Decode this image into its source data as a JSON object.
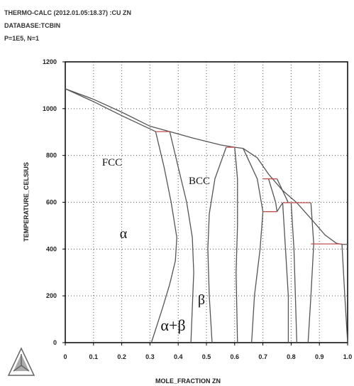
{
  "chart_data": {
    "type": "line",
    "header_lines": [
      "THERMO-CALC (2012.01.05:18.37) :CU ZN",
      "DATABASE:TCBIN",
      "P=1E5, N=1"
    ],
    "xlabel": "MOLE_FRACTION ZN",
    "ylabel": "TEMPERATURE_CELSIUS",
    "xlim": [
      0,
      1
    ],
    "ylim": [
      0,
      1200
    ],
    "xticks": [
      0,
      0.1,
      0.2,
      0.3,
      0.4,
      0.5,
      0.6,
      0.7,
      0.8,
      0.9,
      {
        "value": 1,
        "label": "1.0"
      }
    ],
    "yticks": [
      0,
      200,
      400,
      600,
      800,
      1000,
      1200
    ],
    "grid": true,
    "series": [
      {
        "color": "#555555",
        "x": [
          0,
          0.1,
          0.2,
          0.3,
          0.37,
          0.45,
          0.55,
          0.6,
          0.63,
          0.68,
          0.72,
          0.77,
          0.82,
          0.87,
          0.92,
          0.96,
          0.98,
          1.0
        ],
        "y": [
          1085,
          1040,
          985,
          925,
          902,
          875,
          845,
          835,
          830,
          790,
          720,
          650,
          598,
          530,
          460,
          425,
          420,
          420
        ]
      },
      {
        "color": "#555555",
        "x": [
          0,
          0.1,
          0.2,
          0.32
        ],
        "y": [
          1085,
          1030,
          970,
          902
        ]
      },
      {
        "color": "#555555",
        "x": [
          0.32,
          0.35,
          0.375,
          0.395,
          0.39,
          0.37,
          0.345,
          0.305
        ],
        "y": [
          902,
          750,
          600,
          450,
          350,
          250,
          150,
          0
        ]
      },
      {
        "color": "#555555",
        "x": [
          0.37,
          0.4,
          0.43,
          0.45,
          0.455,
          0.45,
          0.445
        ],
        "y": [
          902,
          750,
          600,
          450,
          300,
          150,
          0
        ]
      },
      {
        "color": "#555555",
        "x": [
          0.57,
          0.53,
          0.51,
          0.505,
          0.51,
          0.52
        ],
        "y": [
          835,
          700,
          550,
          400,
          200,
          0
        ]
      },
      {
        "color": "#555555",
        "x": [
          0.6,
          0.61,
          0.61,
          0.605,
          0.61
        ],
        "y": [
          835,
          700,
          500,
          300,
          0
        ]
      },
      {
        "color": "#555555",
        "x": [
          0.63,
          0.68,
          0.7,
          0.69,
          0.67,
          0.66
        ],
        "y": [
          830,
          700,
          560,
          400,
          200,
          0
        ]
      },
      {
        "color": "#555555",
        "x": [
          0.72,
          0.745,
          0.75
        ],
        "y": [
          700,
          600,
          560
        ]
      },
      {
        "color": "#555555",
        "x": [
          0.75,
          0.79
        ],
        "y": [
          700,
          598
        ]
      },
      {
        "color": "#555555",
        "x": [
          0.75,
          0.77
        ],
        "y": [
          560,
          598
        ]
      },
      {
        "color": "#555555",
        "x": [
          0.77,
          0.78,
          0.79,
          0.79
        ],
        "y": [
          598,
          400,
          200,
          0
        ]
      },
      {
        "color": "#555555",
        "x": [
          0.8,
          0.81,
          0.82
        ],
        "y": [
          598,
          400,
          0
        ]
      },
      {
        "color": "#555555",
        "x": [
          0.87,
          0.88
        ],
        "y": [
          598,
          422
        ]
      },
      {
        "color": "#555555",
        "x": [
          0.88,
          0.87,
          0.86
        ],
        "y": [
          422,
          200,
          0
        ]
      },
      {
        "color": "#555555",
        "x": [
          0.98,
          0.99,
          1.0
        ],
        "y": [
          420,
          200,
          0
        ]
      },
      {
        "color": "#c0504d",
        "x": [
          0.32,
          0.37
        ],
        "y": [
          902,
          902
        ]
      },
      {
        "color": "#c0504d",
        "x": [
          0.57,
          0.6
        ],
        "y": [
          835,
          835
        ]
      },
      {
        "color": "#c0504d",
        "x": [
          0.7,
          0.75
        ],
        "y": [
          700,
          700
        ]
      },
      {
        "color": "#c0504d",
        "x": [
          0.7,
          0.75
        ],
        "y": [
          560,
          560
        ]
      },
      {
        "color": "#c0504d",
        "x": [
          0.77,
          0.87
        ],
        "y": [
          598,
          598
        ]
      },
      {
        "color": "#c0504d",
        "x": [
          0.87,
          0.98
        ],
        "y": [
          422,
          422
        ]
      }
    ],
    "annotations": [
      "FCC",
      "BCC",
      "α",
      "β",
      "α+β"
    ]
  }
}
